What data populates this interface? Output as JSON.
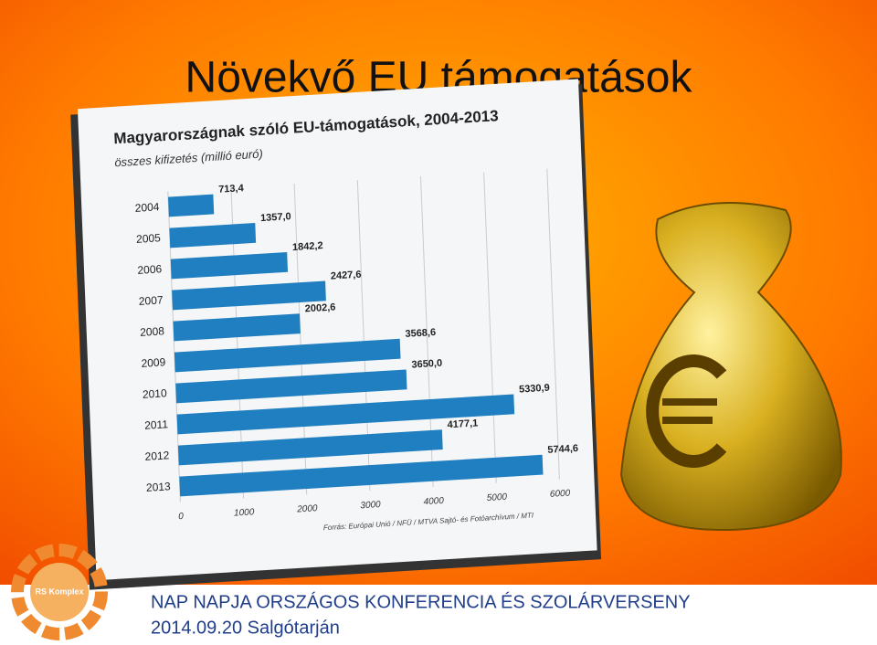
{
  "slide": {
    "title": "Növekvő EU támogatások",
    "footer": [
      "NAP NAPJA ORSZÁGOS KONFERENCIA ÉS SZOLÁRVERSENY",
      "2014.09.20 Salgótarján"
    ],
    "logo": "RS Komplex"
  },
  "chart_data": {
    "type": "bar",
    "orientation": "horizontal",
    "title": "Magyarországnak szóló EU-támogatások, 2004-2013",
    "subtitle": "összes kifizetés (millió euró)",
    "source": "Forrás: Európai Unió / NFÜ / MTVA Sajtó- és Fotóarchívum / MTI",
    "categories": [
      "2004",
      "2005",
      "2006",
      "2007",
      "2008",
      "2009",
      "2010",
      "2011",
      "2012",
      "2013"
    ],
    "values": [
      713.4,
      1357.0,
      1842.2,
      2427.6,
      2002.6,
      3568.6,
      3650.0,
      5330.9,
      4177.1,
      5744.6
    ],
    "value_labels": [
      "713,4",
      "1357,0",
      "1842,2",
      "2427,6",
      "2002,6",
      "3568,6",
      "3650,0",
      "5330,9",
      "4177,1",
      "5744,6"
    ],
    "color": "#1f7fc0",
    "xlim": [
      0,
      6000
    ],
    "xticks": [
      0,
      1000,
      2000,
      3000,
      4000,
      5000,
      6000
    ],
    "grid": true
  }
}
